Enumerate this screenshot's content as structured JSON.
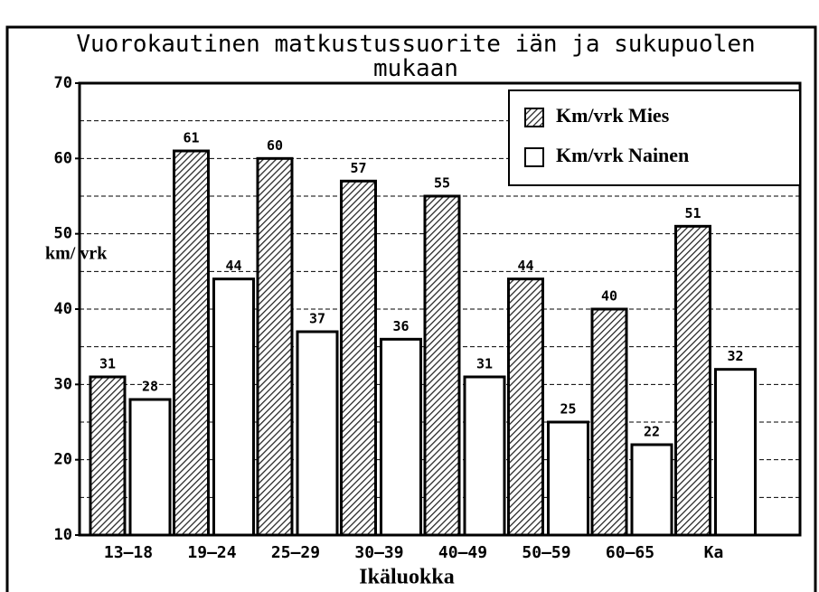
{
  "chart_data": {
    "type": "bar",
    "title": "Vuorokautinen matkustussuorite iän ja sukupuolen mukaan",
    "x_label": "Ikäluokka",
    "y_label": "km/ vrk",
    "categories": [
      "13–18",
      "19–24",
      "25–29",
      "30–39",
      "40–49",
      "50–59",
      "60–65",
      "Ka"
    ],
    "series": [
      {
        "name": "Km/vrk Mies",
        "color": "#444444",
        "pattern": "hatch",
        "values": [
          31,
          61,
          60,
          57,
          55,
          44,
          40,
          51
        ]
      },
      {
        "name": "Km/vrk Nainen",
        "color": "#ffffff",
        "values": [
          28,
          44,
          37,
          36,
          31,
          25,
          22,
          32
        ]
      }
    ],
    "ylim": [
      10,
      70
    ],
    "yticks": [
      10,
      20,
      30,
      40,
      50,
      60,
      70
    ],
    "grid": true,
    "legend": "top-right"
  }
}
